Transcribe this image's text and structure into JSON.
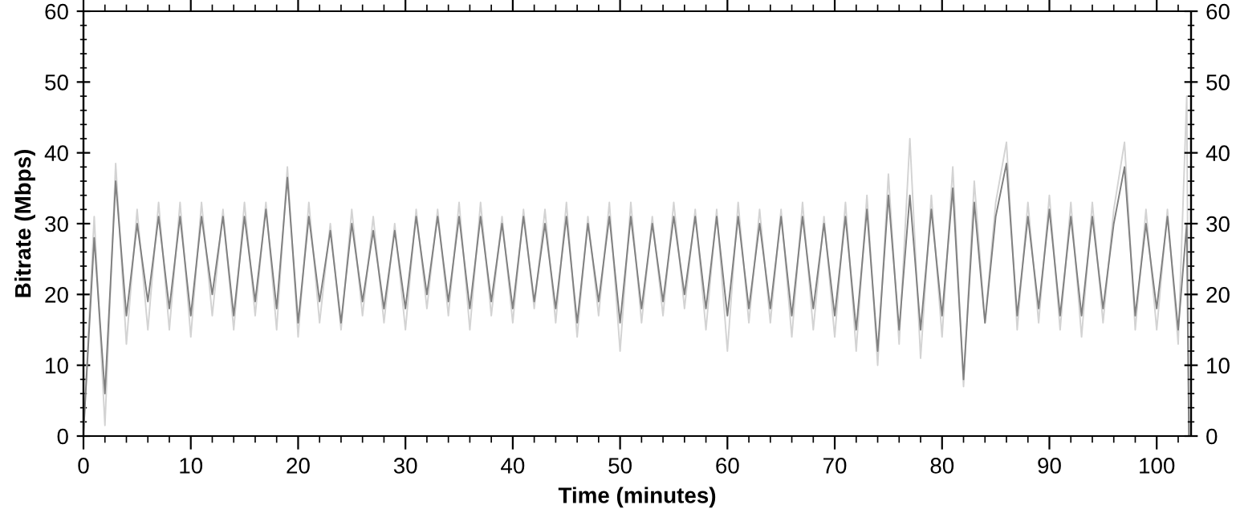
{
  "chart_data": {
    "type": "line",
    "xlabel": "Time (minutes)",
    "ylabel": "Bitrate (Mbps)",
    "xlim": [
      0,
      103.2
    ],
    "xticks": [
      0,
      10,
      20,
      30,
      40,
      50,
      60,
      70,
      80,
      90,
      100
    ],
    "ylim": [
      0,
      60
    ],
    "yticks": [
      0,
      10,
      20,
      30,
      40,
      50,
      60
    ],
    "y2lim": [
      0,
      60
    ],
    "y2ticks": [
      0,
      10,
      20,
      30,
      40,
      50,
      60
    ],
    "series": [
      {
        "color": "#d3d3d3",
        "x": [
          0,
          1,
          2,
          3,
          4,
          5,
          6,
          7,
          8,
          9,
          10,
          11,
          12,
          13,
          14,
          15,
          16,
          17,
          18,
          19,
          20,
          21,
          22,
          23,
          24,
          25,
          26,
          27,
          28,
          29,
          30,
          31,
          32,
          33,
          34,
          35,
          36,
          37,
          38,
          39,
          40,
          41,
          42,
          43,
          44,
          45,
          46,
          47,
          48,
          49,
          50,
          51,
          52,
          53,
          54,
          55,
          56,
          57,
          58,
          59,
          60,
          61,
          62,
          63,
          64,
          65,
          66,
          67,
          68,
          69,
          70,
          71,
          72,
          73,
          74,
          75,
          76,
          77,
          78,
          79,
          80,
          81,
          82,
          83,
          84,
          85,
          86,
          87,
          88,
          89,
          90,
          91,
          92,
          93,
          94,
          95,
          96,
          97,
          98,
          99,
          100,
          101,
          102,
          102.8,
          103
        ],
        "values": [
          0,
          31,
          1.5,
          38.5,
          13,
          32,
          15,
          33,
          15,
          33,
          14,
          33,
          17,
          32,
          15,
          33,
          17,
          33,
          15,
          38,
          14,
          33,
          16,
          30,
          15,
          32,
          17,
          31,
          16,
          30,
          15,
          32,
          18,
          32,
          17,
          33,
          15,
          33,
          17,
          31,
          16,
          32,
          18,
          32,
          16,
          33,
          14,
          31,
          17,
          33,
          12,
          33,
          16,
          31,
          17,
          33,
          18,
          32,
          15,
          32,
          12,
          33,
          16,
          32,
          16,
          32,
          14,
          33,
          15,
          31,
          14,
          33,
          12,
          34,
          10,
          37,
          13,
          42,
          11,
          34,
          14,
          38,
          7,
          36,
          16,
          33,
          41.5,
          15,
          33,
          16,
          34,
          15,
          33,
          14,
          33,
          16,
          32,
          41.5,
          15,
          32,
          15,
          32,
          13,
          48,
          0
        ]
      },
      {
        "color": "#808080",
        "x": [
          0,
          1,
          2,
          3,
          4,
          5,
          6,
          7,
          8,
          9,
          10,
          11,
          12,
          13,
          14,
          15,
          16,
          17,
          18,
          19,
          20,
          21,
          22,
          23,
          24,
          25,
          26,
          27,
          28,
          29,
          30,
          31,
          32,
          33,
          34,
          35,
          36,
          37,
          38,
          39,
          40,
          41,
          42,
          43,
          44,
          45,
          46,
          47,
          48,
          49,
          50,
          51,
          52,
          53,
          54,
          55,
          56,
          57,
          58,
          59,
          60,
          61,
          62,
          63,
          64,
          65,
          66,
          67,
          68,
          69,
          70,
          71,
          72,
          73,
          74,
          75,
          76,
          77,
          78,
          79,
          80,
          81,
          82,
          83,
          84,
          85,
          86,
          87,
          88,
          89,
          90,
          91,
          92,
          93,
          94,
          95,
          96,
          97,
          98,
          99,
          100,
          101,
          102,
          102.8,
          103
        ],
        "values": [
          0.5,
          28,
          6,
          36,
          17,
          30,
          19,
          31,
          18,
          31,
          17,
          31,
          20,
          31,
          17,
          31,
          19,
          32,
          18,
          36.5,
          16,
          31,
          19,
          29,
          16,
          30,
          19,
          29,
          18,
          29,
          18,
          31,
          20,
          31,
          19,
          31,
          18,
          31,
          19,
          30,
          18,
          31,
          19,
          30,
          18,
          31,
          16,
          30,
          19,
          31,
          16,
          31,
          18,
          30,
          19,
          31,
          20,
          31,
          18,
          31,
          17,
          31,
          18,
          30,
          18,
          31,
          17,
          31,
          18,
          30,
          17,
          31,
          15,
          32,
          12,
          34,
          15,
          34,
          15,
          32,
          17,
          35,
          8,
          33,
          16,
          31,
          38.5,
          17,
          31,
          18,
          32,
          17,
          31,
          17,
          31,
          18,
          30,
          38,
          17,
          30,
          18,
          31,
          15,
          30,
          0
        ]
      }
    ]
  }
}
